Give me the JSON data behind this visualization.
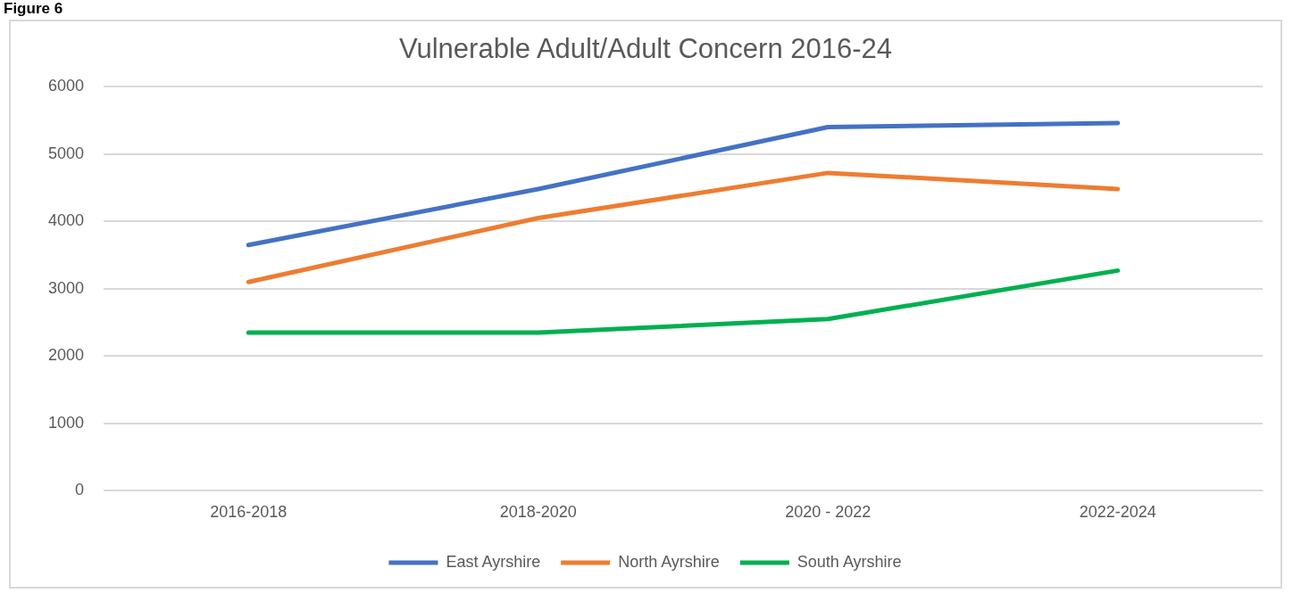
{
  "chart_data": {
    "type": "line",
    "title": "Vulnerable Adult/Adult Concern 2016-24",
    "annotations": [
      "Figure 6"
    ],
    "categories": [
      "2016-2018",
      "2018-2020",
      "2020 - 2022",
      "2022-2024"
    ],
    "series": [
      {
        "name": "East Ayrshire",
        "color": "#4472c4",
        "values": [
          3650,
          4480,
          5400,
          5460
        ]
      },
      {
        "name": "North Ayrshire",
        "color": "#ed7d31",
        "values": [
          3100,
          4050,
          4720,
          4480
        ]
      },
      {
        "name": "South Ayrshire",
        "color": "#00b050",
        "values": [
          2350,
          2350,
          2550,
          3270
        ]
      }
    ],
    "ylim": [
      0,
      6000
    ],
    "yticks": [
      0,
      1000,
      2000,
      3000,
      4000,
      5000,
      6000
    ],
    "grid": "y",
    "legend": "bottom",
    "marker": "none",
    "line_style": "solid"
  }
}
